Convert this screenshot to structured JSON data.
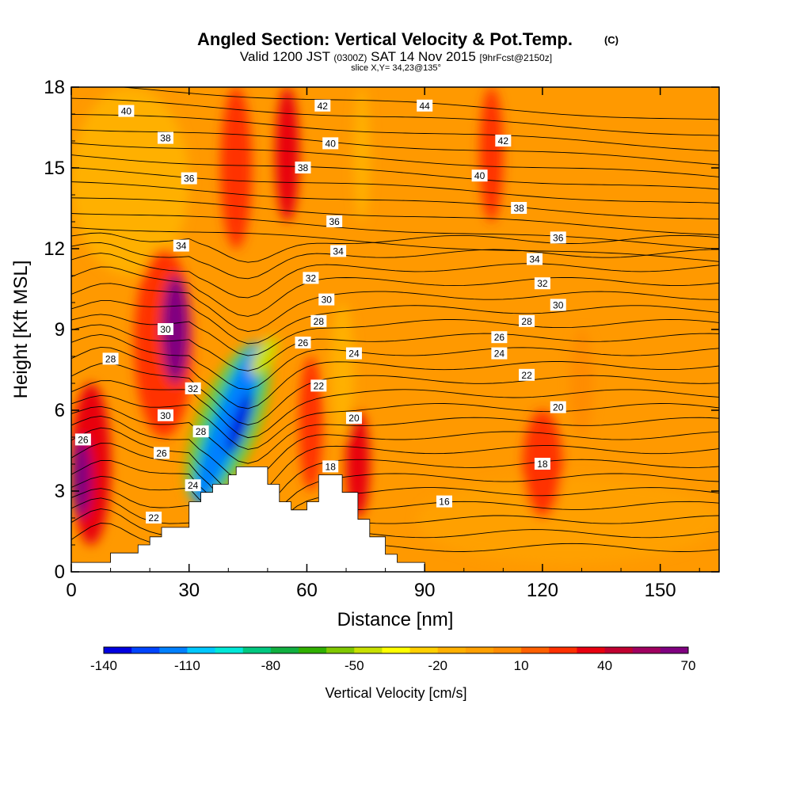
{
  "title": {
    "main": "Angled Section: Vertical Velocity & Pot.Temp.",
    "copyright": "(C)",
    "valid_line": "Valid 1200 JST",
    "valid_zulu": "(0300Z)",
    "valid_date": "SAT 14 Nov 2015",
    "forecast": "[9hrFcst@2150z]",
    "slice": "slice X,Y= 34,23@135°"
  },
  "chart_data": {
    "type": "heatmap",
    "xlabel": "Distance [nm]",
    "ylabel": "Height [Kft MSL]",
    "xlim": [
      0,
      165
    ],
    "ylim": [
      0,
      18
    ],
    "x_ticks": [
      0,
      30,
      60,
      90,
      120,
      150
    ],
    "y_ticks": [
      0,
      3,
      6,
      9,
      12,
      15,
      18
    ],
    "colorbar": {
      "label": "Vertical Velocity [cm/s]",
      "tick_labels": [
        "-140",
        "-110",
        "-80",
        "-50",
        "-20",
        "10",
        "40",
        "70"
      ],
      "tick_values": [
        -140,
        -110,
        -80,
        -50,
        -20,
        10,
        40,
        70
      ],
      "levels": [
        -140,
        -130,
        -120,
        -110,
        -100,
        -90,
        -80,
        -70,
        -60,
        -50,
        -40,
        -30,
        -20,
        -10,
        0,
        10,
        20,
        30,
        40,
        50,
        60,
        70
      ],
      "colors": [
        "#0000e0",
        "#0044ff",
        "#0080ff",
        "#00c8ff",
        "#00e8d8",
        "#00c880",
        "#10b040",
        "#30b000",
        "#80c800",
        "#c8e000",
        "#ffff00",
        "#ffd000",
        "#ffb000",
        "#ffa000",
        "#ff8c00",
        "#ff6000",
        "#ff3000",
        "#e80010",
        "#c00030",
        "#a00060",
        "#800080"
      ]
    },
    "terrain": [
      [
        0,
        0.35
      ],
      [
        10,
        0.35
      ],
      [
        10,
        0.7
      ],
      [
        17,
        0.7
      ],
      [
        17,
        1.0
      ],
      [
        20,
        1.0
      ],
      [
        20,
        1.3
      ],
      [
        23,
        1.3
      ],
      [
        23,
        1.65
      ],
      [
        30,
        1.65
      ],
      [
        30,
        2.6
      ],
      [
        33,
        2.6
      ],
      [
        33,
        2.95
      ],
      [
        36,
        2.95
      ],
      [
        36,
        3.25
      ],
      [
        40,
        3.25
      ],
      [
        40,
        3.6
      ],
      [
        42,
        3.6
      ],
      [
        42,
        3.9
      ],
      [
        50,
        3.9
      ],
      [
        50,
        3.25
      ],
      [
        53,
        3.25
      ],
      [
        53,
        2.6
      ],
      [
        56,
        2.6
      ],
      [
        56,
        2.3
      ],
      [
        60,
        2.3
      ],
      [
        60,
        2.6
      ],
      [
        63,
        2.6
      ],
      [
        63,
        3.6
      ],
      [
        69,
        3.6
      ],
      [
        69,
        2.95
      ],
      [
        73,
        2.95
      ],
      [
        73,
        1.95
      ],
      [
        76,
        1.95
      ],
      [
        76,
        1.3
      ],
      [
        80,
        1.3
      ],
      [
        80,
        0.65
      ],
      [
        83,
        0.65
      ],
      [
        83,
        0.35
      ],
      [
        90,
        0.35
      ],
      [
        90,
        0.0
      ],
      [
        0,
        0.0
      ]
    ],
    "velocity_features": [
      {
        "x": 5,
        "y": 5.5,
        "value": 15
      },
      {
        "x": 2,
        "y": 3.3,
        "value": 70
      },
      {
        "x": 27,
        "y": 9.5,
        "value": 70
      },
      {
        "x": 43,
        "y": 5.5,
        "value": -140
      },
      {
        "x": 73,
        "y": 4.0,
        "value": 40
      },
      {
        "x": 120,
        "y": 4.2,
        "value": 35
      },
      {
        "x": 12,
        "y": 15,
        "value": -20
      }
    ],
    "contour_labels": [
      {
        "x": 14,
        "y": 17.1,
        "text": "40"
      },
      {
        "x": 24,
        "y": 16.1,
        "text": "38"
      },
      {
        "x": 30,
        "y": 14.6,
        "text": "36"
      },
      {
        "x": 28,
        "y": 12.1,
        "text": "34"
      },
      {
        "x": 24,
        "y": 9.0,
        "text": "30"
      },
      {
        "x": 10,
        "y": 7.9,
        "text": "28"
      },
      {
        "x": 3,
        "y": 4.9,
        "text": "26"
      },
      {
        "x": 31,
        "y": 6.8,
        "text": "32"
      },
      {
        "x": 24,
        "y": 5.8,
        "text": "30"
      },
      {
        "x": 33,
        "y": 5.2,
        "text": "28"
      },
      {
        "x": 23,
        "y": 4.4,
        "text": "26"
      },
      {
        "x": 31,
        "y": 3.2,
        "text": "24"
      },
      {
        "x": 21,
        "y": 2.0,
        "text": "22"
      },
      {
        "x": 64,
        "y": 17.3,
        "text": "42"
      },
      {
        "x": 90,
        "y": 17.3,
        "text": "44"
      },
      {
        "x": 66,
        "y": 15.9,
        "text": "40"
      },
      {
        "x": 59,
        "y": 15.0,
        "text": "38"
      },
      {
        "x": 67,
        "y": 13.0,
        "text": "36"
      },
      {
        "x": 68,
        "y": 11.9,
        "text": "34"
      },
      {
        "x": 61,
        "y": 10.9,
        "text": "32"
      },
      {
        "x": 65,
        "y": 10.1,
        "text": "30"
      },
      {
        "x": 63,
        "y": 9.3,
        "text": "28"
      },
      {
        "x": 59,
        "y": 8.5,
        "text": "26"
      },
      {
        "x": 63,
        "y": 6.9,
        "text": "22"
      },
      {
        "x": 72,
        "y": 8.1,
        "text": "24"
      },
      {
        "x": 72,
        "y": 5.7,
        "text": "20"
      },
      {
        "x": 66,
        "y": 3.9,
        "text": "18"
      },
      {
        "x": 110,
        "y": 16.0,
        "text": "42"
      },
      {
        "x": 104,
        "y": 14.7,
        "text": "40"
      },
      {
        "x": 114,
        "y": 13.5,
        "text": "38"
      },
      {
        "x": 124,
        "y": 12.4,
        "text": "36"
      },
      {
        "x": 118,
        "y": 11.6,
        "text": "34"
      },
      {
        "x": 120,
        "y": 10.7,
        "text": "32"
      },
      {
        "x": 124,
        "y": 9.9,
        "text": "30"
      },
      {
        "x": 116,
        "y": 9.3,
        "text": "28"
      },
      {
        "x": 109,
        "y": 8.7,
        "text": "26"
      },
      {
        "x": 109,
        "y": 8.1,
        "text": "24"
      },
      {
        "x": 116,
        "y": 7.3,
        "text": "22"
      },
      {
        "x": 124,
        "y": 6.1,
        "text": "20"
      },
      {
        "x": 120,
        "y": 4.0,
        "text": "18"
      },
      {
        "x": 95,
        "y": 2.6,
        "text": "16"
      }
    ]
  }
}
